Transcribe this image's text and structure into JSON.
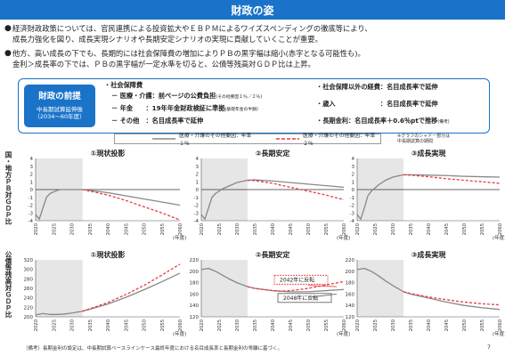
{
  "page_title": "財政の姿",
  "bullets": [
    {
      "line1": "経済財政政策については、官民連携による投資拡大やＥＢＰＭによるワイズスペンディングの徹底等により、",
      "line2": "成長力強化を図り、成長実現シナリオや長期安定シナリオの実現に貢献していくことが重要。"
    },
    {
      "line1": "他方、高い成長の下でも、長期的には社会保障費の増加によりＰＢの黒字幅は縮小(赤字となる可能性も)。",
      "line2": "金利＞成長率の下では、ＰＢの黒字幅が一定水準を切ると、公債等残高対ＧＤＰ比は上昇。"
    }
  ],
  "premise": {
    "badge_title": "財政の前提",
    "badge_sub1": "中長期試算延伸後",
    "badge_sub2": "（2034～60年度）",
    "social_security_header": "・社会保障費",
    "medical_label": "－ 医療・介護：",
    "medical_value": "前ページの公費負担",
    "medical_note": "(その他要因１％／２％)",
    "pension_label": "－ 年金　　：",
    "pension_value": "19年年金財政検証に準拠",
    "pension_note": "(基礎年金の半額)",
    "other_label": "－ その他　：",
    "other_value": "名目成長率で延伸",
    "non_ss_label": "・社会保障以外の経費：",
    "non_ss_value": "名目成長率で延伸",
    "revenue_label": "・歳入　　　　　　　：",
    "revenue_value": "名目成長率で延伸",
    "interest_label": "・長期金利：",
    "interest_value": "名目成長率＋0.6％ptで推移",
    "interest_note": "(備考)"
  },
  "legend": {
    "series1": "医療・介護のその他要因：年率１％",
    "series2": "医療・介護のその他要因：年率２％",
    "note_line1": "※グラフのシャドー部分は",
    "note_line2": "中長期試算の期間"
  },
  "row_labels": {
    "pb": "国・地方ＰＢ対ＧＤＰ比",
    "debt": "公債等残高対ＧＤＰ比"
  },
  "annotations": {
    "reversal_2042": "2042年に反転",
    "reversal_2048": "2048年に反転"
  },
  "footnote": "（備考）長期金利の設定は、中長期試算ベースラインケース最終年度における名目成長率と長期金利の乖離に基づく。",
  "page_number": "7",
  "colors": {
    "blue": "#1a73c9",
    "series1": "#888888",
    "series2": "#e8393d",
    "shade": "#e6e6e6"
  },
  "chart_data": [
    {
      "type": "line",
      "title": "①現状投影",
      "xlabel": "(年度)",
      "ylim": [
        -4,
        4
      ],
      "yticks": [
        -4,
        -3,
        -2,
        -1,
        0,
        1,
        2,
        3,
        4
      ],
      "xticks": [
        2020,
        2025,
        2030,
        2035,
        2040,
        2045,
        2050,
        2055,
        2060
      ],
      "shade": [
        2020,
        2033
      ],
      "series": [
        {
          "name": "医療・介護のその他要因：年率１％",
          "x": [
            2020,
            2021,
            2022,
            2023,
            2024,
            2025,
            2026,
            2027,
            2028,
            2029,
            2030,
            2031,
            2032,
            2033,
            2035,
            2040,
            2045,
            2050,
            2055,
            2060
          ],
          "y": [
            -3.2,
            -3.8,
            -2.4,
            -1.0,
            -0.5,
            -0.3,
            -0.1,
            0.0,
            0.0,
            0.0,
            0.0,
            0.0,
            0.0,
            0.0,
            -0.1,
            -0.4,
            -0.8,
            -1.2,
            -1.6,
            -2.0
          ]
        },
        {
          "name": "医療・介護のその他要因：年率２％",
          "x": [
            2033,
            2035,
            2040,
            2045,
            2050,
            2055,
            2060
          ],
          "y": [
            0.0,
            -0.2,
            -0.7,
            -1.4,
            -2.2,
            -3.0,
            -3.9
          ]
        }
      ]
    },
    {
      "type": "line",
      "title": "②長期安定",
      "xlabel": "(年度)",
      "ylim": [
        -4,
        4
      ],
      "yticks": [
        -4,
        -3,
        -2,
        -1,
        0,
        1,
        2,
        3,
        4
      ],
      "xticks": [
        2020,
        2025,
        2030,
        2035,
        2040,
        2045,
        2050,
        2055,
        2060
      ],
      "shade": [
        2020,
        2033
      ],
      "series": [
        {
          "name": "医療・介護のその他要因：年率１％",
          "x": [
            2020,
            2021,
            2022,
            2023,
            2024,
            2025,
            2026,
            2027,
            2028,
            2029,
            2030,
            2031,
            2032,
            2033,
            2035,
            2040,
            2045,
            2050,
            2055,
            2060
          ],
          "y": [
            -3.2,
            -3.8,
            -2.4,
            -1.0,
            -0.5,
            -0.2,
            0.1,
            0.3,
            0.5,
            0.7,
            0.9,
            1.0,
            1.1,
            1.2,
            1.25,
            1.1,
            0.9,
            0.7,
            0.5,
            0.3
          ]
        },
        {
          "name": "医療・介護のその他要因：年率２％",
          "x": [
            2033,
            2035,
            2040,
            2045,
            2050,
            2055,
            2060
          ],
          "y": [
            1.2,
            1.15,
            0.8,
            0.3,
            -0.2,
            -0.7,
            -1.3
          ]
        }
      ]
    },
    {
      "type": "line",
      "title": "③成長実現",
      "xlabel": "(年度)",
      "ylim": [
        -4,
        4
      ],
      "yticks": [
        -4,
        -3,
        -2,
        -1,
        0,
        1,
        2,
        3,
        4
      ],
      "xticks": [
        2020,
        2025,
        2030,
        2035,
        2040,
        2045,
        2050,
        2055,
        2060
      ],
      "shade": [
        2020,
        2033
      ],
      "series": [
        {
          "name": "医療・介護のその他要因：年率１％",
          "x": [
            2020,
            2021,
            2022,
            2023,
            2024,
            2025,
            2026,
            2027,
            2028,
            2029,
            2030,
            2031,
            2032,
            2033,
            2035,
            2040,
            2045,
            2050,
            2055,
            2060
          ],
          "y": [
            -3.2,
            -3.8,
            -2.4,
            -0.8,
            -0.2,
            0.2,
            0.6,
            0.9,
            1.2,
            1.4,
            1.6,
            1.7,
            1.8,
            1.9,
            1.9,
            1.85,
            1.8,
            1.7,
            1.65,
            1.6
          ]
        },
        {
          "name": "医療・介護のその他要因：年率２％",
          "x": [
            2033,
            2035,
            2040,
            2045,
            2050,
            2055,
            2060
          ],
          "y": [
            1.9,
            1.85,
            1.65,
            1.4,
            1.2,
            1.0,
            0.8
          ]
        }
      ]
    },
    {
      "type": "line",
      "title": "①現状投影",
      "xlabel": "(年度)",
      "ylim": [
        200,
        320
      ],
      "yticks": [
        200,
        220,
        240,
        260,
        280,
        300,
        320
      ],
      "xticks": [
        2020,
        2025,
        2030,
        2035,
        2040,
        2045,
        2050,
        2055,
        2060
      ],
      "shade": [
        2020,
        2033
      ],
      "series": [
        {
          "name": "医療・介護のその他要因：年率１％",
          "x": [
            2020,
            2022,
            2024,
            2026,
            2028,
            2030,
            2033,
            2035,
            2040,
            2045,
            2050,
            2055,
            2060
          ],
          "y": [
            204,
            207,
            205,
            205,
            206,
            208,
            212,
            216,
            227,
            241,
            257,
            274,
            292
          ]
        },
        {
          "name": "医療・介護のその他要因：年率２％",
          "x": [
            2033,
            2035,
            2040,
            2045,
            2050,
            2055,
            2060
          ],
          "y": [
            212,
            217,
            230,
            247,
            266,
            288,
            311
          ]
        }
      ]
    },
    {
      "type": "line",
      "title": "②長期安定",
      "xlabel": "(年度)",
      "ylim": [
        120,
        220
      ],
      "yticks": [
        120,
        140,
        160,
        180,
        200,
        220
      ],
      "xticks": [
        2020,
        2025,
        2030,
        2035,
        2040,
        2045,
        2050,
        2055,
        2060
      ],
      "shade": [
        2020,
        2033
      ],
      "series": [
        {
          "name": "医療・介護のその他要因：年率１％",
          "x": [
            2020,
            2022,
            2024,
            2026,
            2028,
            2030,
            2033,
            2035,
            2040,
            2045,
            2048,
            2050,
            2055,
            2060
          ],
          "y": [
            203,
            205,
            200,
            193,
            186,
            180,
            173,
            170,
            166,
            164,
            164,
            164,
            166,
            168
          ]
        },
        {
          "name": "医療・介護のその他要因：年率２％",
          "x": [
            2033,
            2035,
            2040,
            2042,
            2045,
            2050,
            2055,
            2060
          ],
          "y": [
            173,
            170,
            166,
            165,
            166,
            170,
            176,
            182
          ]
        }
      ]
    },
    {
      "type": "line",
      "title": "③成長実現",
      "xlabel": "(年度)",
      "ylim": [
        120,
        220
      ],
      "yticks": [
        120,
        140,
        160,
        180,
        200,
        220
      ],
      "xticks": [
        2020,
        2025,
        2030,
        2035,
        2040,
        2045,
        2050,
        2055,
        2060
      ],
      "shade": [
        2020,
        2033
      ],
      "series": [
        {
          "name": "医療・介護のその他要因：年率１％",
          "x": [
            2020,
            2022,
            2024,
            2026,
            2028,
            2030,
            2033,
            2035,
            2040,
            2045,
            2050,
            2055,
            2060
          ],
          "y": [
            203,
            205,
            200,
            192,
            183,
            175,
            164,
            160,
            153,
            146,
            140,
            136,
            133
          ]
        },
        {
          "name": "医療・介護のその他要因：年率２％",
          "x": [
            2033,
            2035,
            2040,
            2045,
            2050,
            2055,
            2060
          ],
          "y": [
            164,
            161,
            155,
            150,
            146,
            143,
            141
          ]
        }
      ]
    }
  ]
}
